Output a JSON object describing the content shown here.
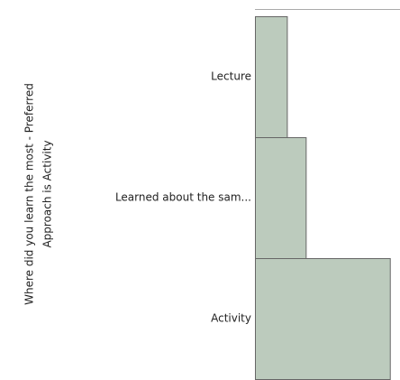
{
  "chart_data": {
    "type": "hbar",
    "ylabel": [
      "Where did you learn the most - Preferred",
      "Approach is Activity"
    ],
    "categories": [
      "Lecture",
      "Learned about the sam...",
      "Activity"
    ],
    "values": [
      22,
      35,
      93
    ],
    "color": "#bccbbd",
    "xlim": [
      0,
      100
    ]
  }
}
